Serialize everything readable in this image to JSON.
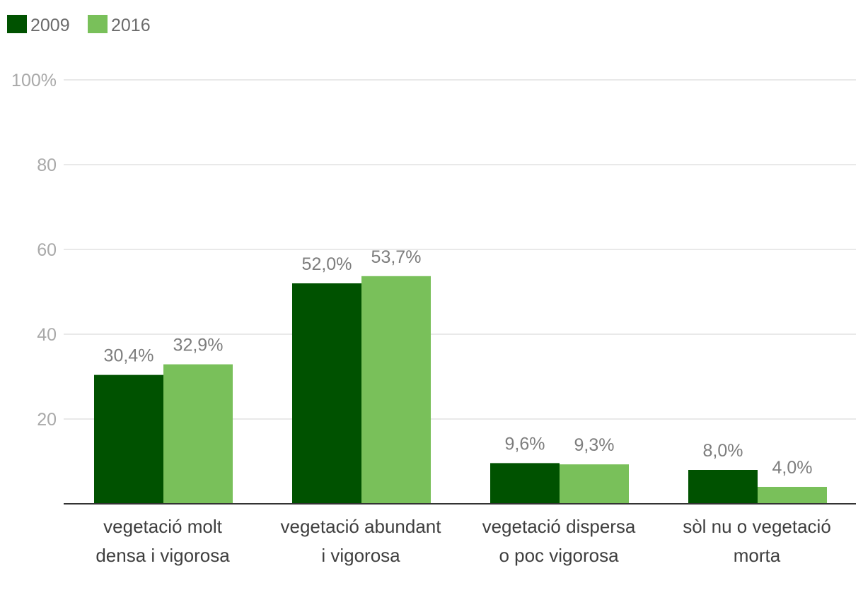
{
  "chart_data": {
    "type": "bar",
    "title": "",
    "xlabel": "",
    "ylabel": "",
    "ylim": [
      0,
      100
    ],
    "yticks": [
      20,
      40,
      60,
      80,
      100
    ],
    "ytick_labels": [
      "20",
      "40",
      "60",
      "80",
      "100%"
    ],
    "grid": true,
    "legend_position": "top-left",
    "categories": [
      [
        "vegetació molt",
        "densa i vigorosa"
      ],
      [
        "vegetació abundant",
        "i vigorosa"
      ],
      [
        "vegetació dispersa",
        "o poc vigorosa"
      ],
      [
        "sòl nu o vegetació",
        "morta"
      ]
    ],
    "series": [
      {
        "name": "2009",
        "color": "#005200",
        "values": [
          30.4,
          52.0,
          9.6,
          8.0
        ],
        "labels": [
          "30,4%",
          "52,0%",
          "9,6%",
          "8,0%"
        ]
      },
      {
        "name": "2016",
        "color": "#79c05a",
        "values": [
          32.9,
          53.7,
          9.3,
          4.0
        ],
        "labels": [
          "32,9%",
          "53,7%",
          "9,3%",
          "4,0%"
        ]
      }
    ]
  }
}
